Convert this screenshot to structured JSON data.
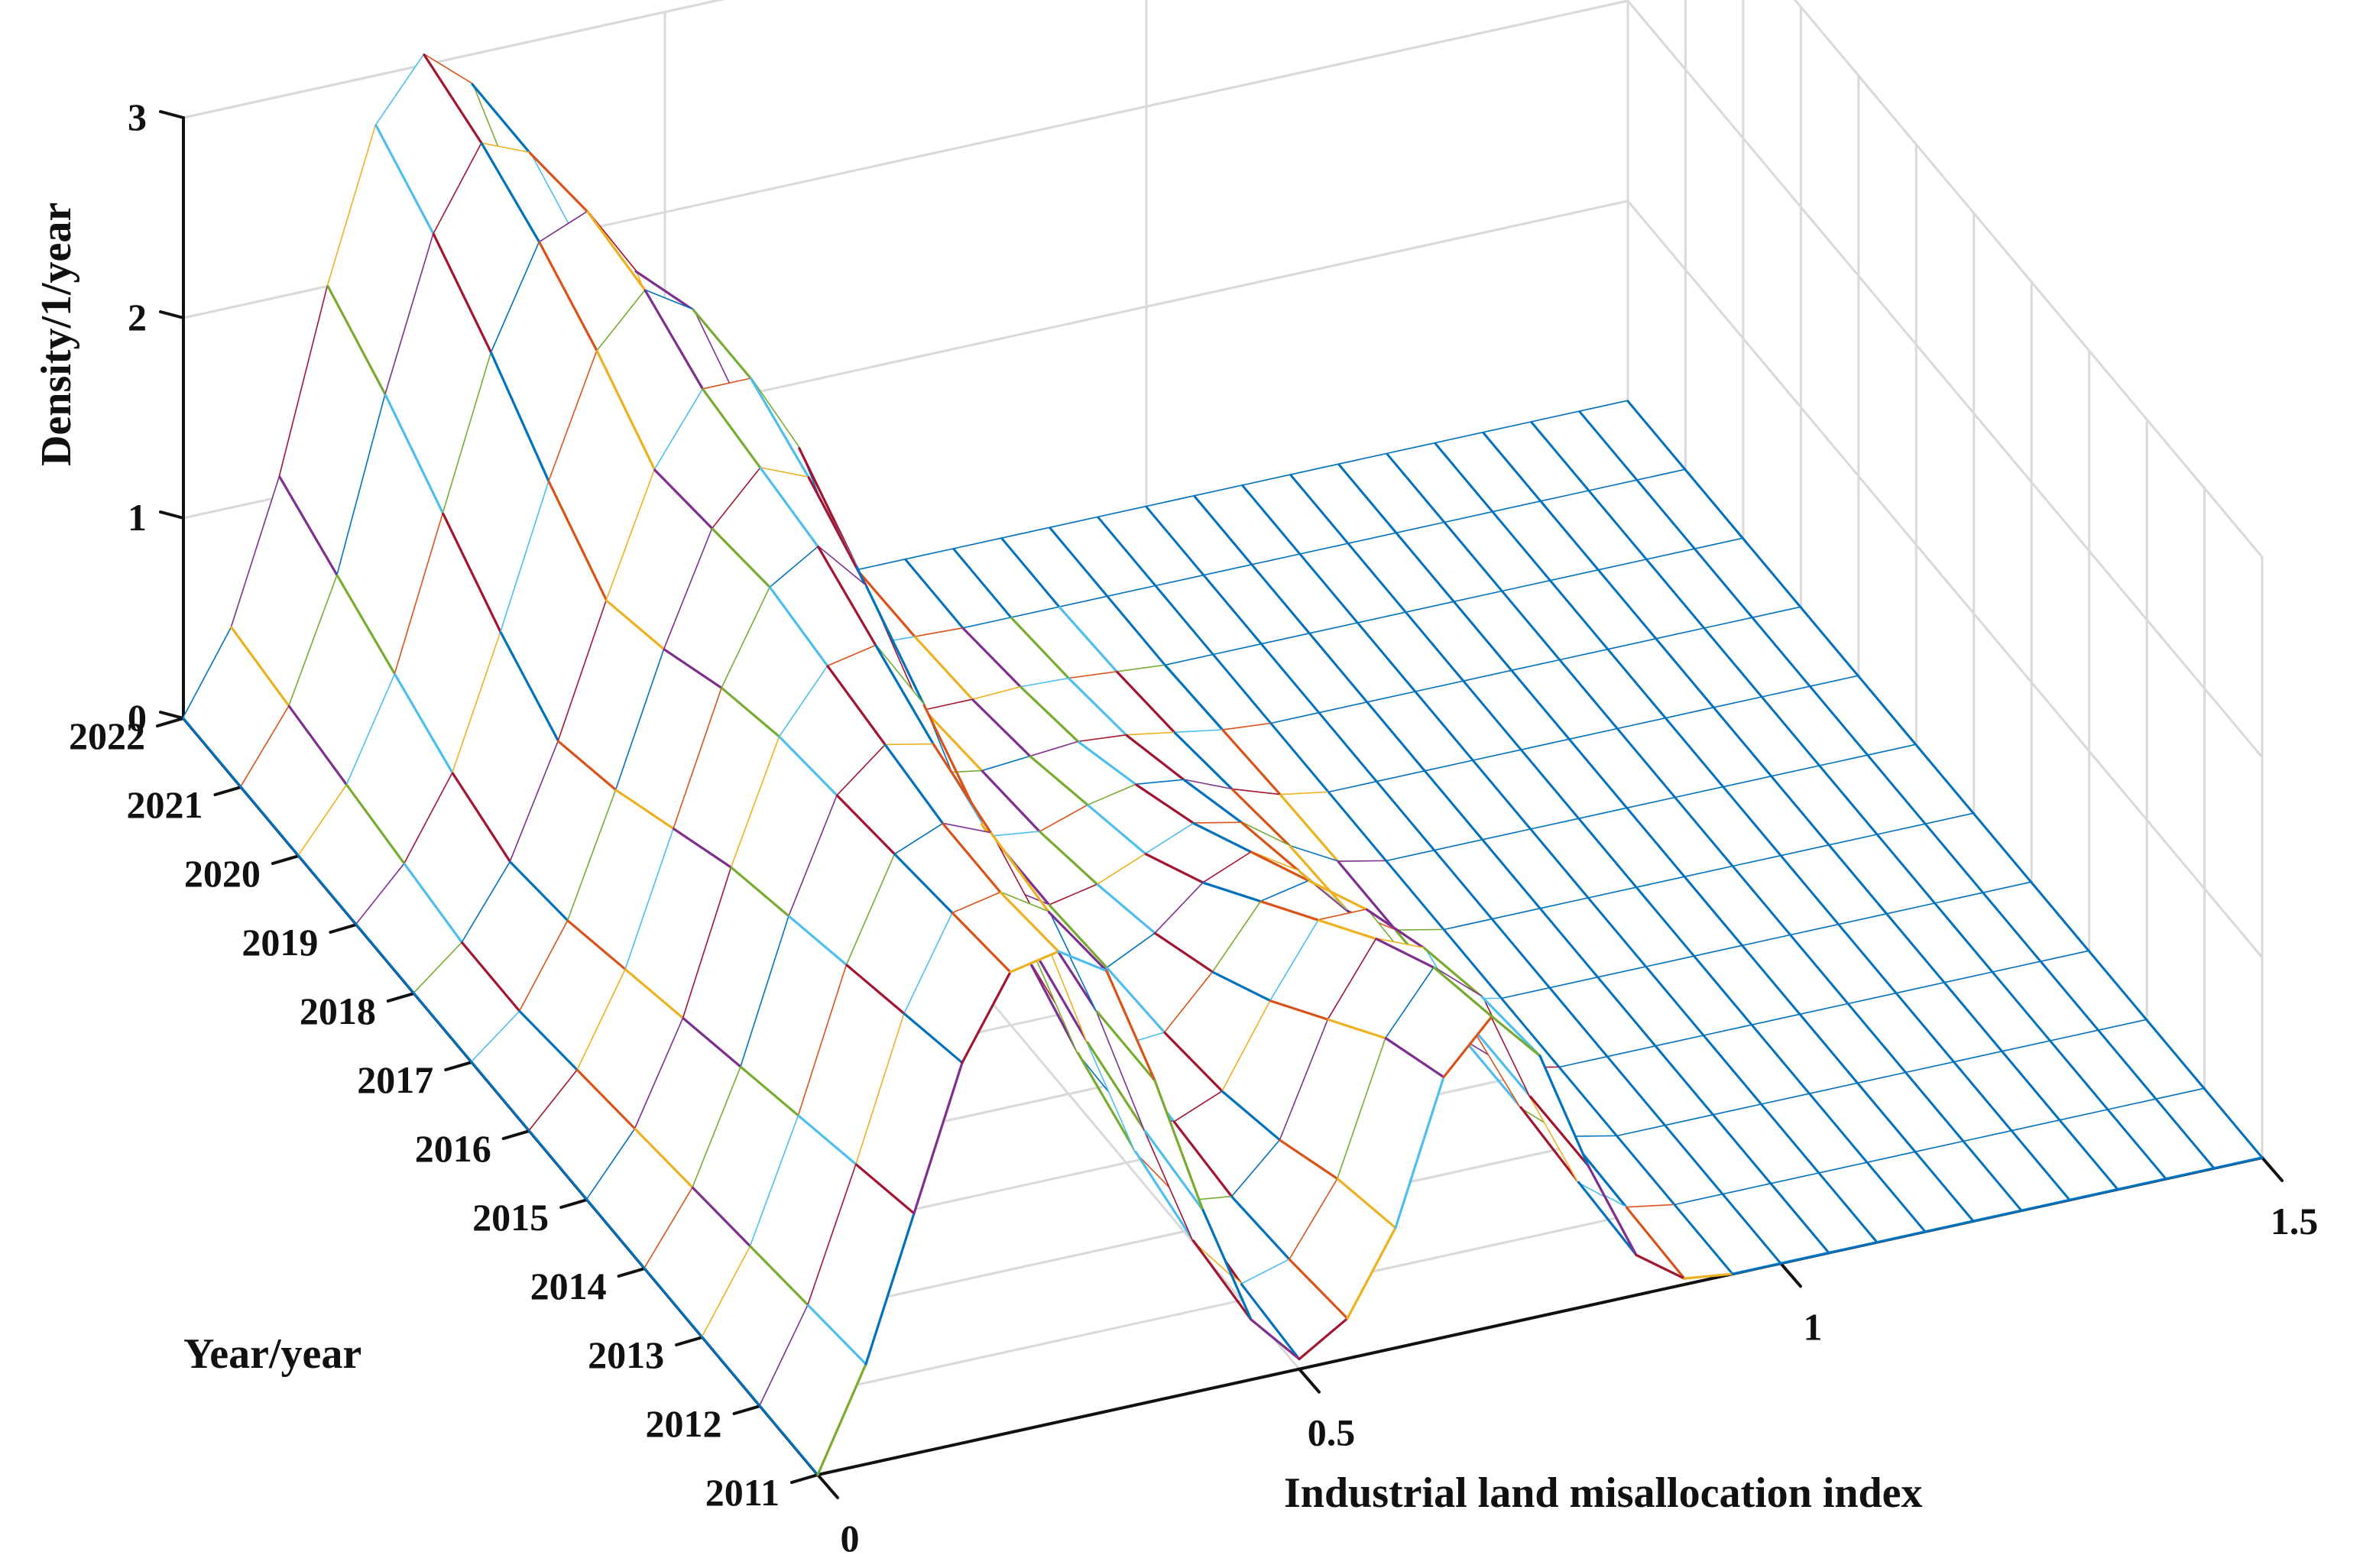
{
  "chart_data": {
    "type": "surface",
    "title": "",
    "xlabel": "Industrial land misallocation index",
    "ylabel": "Year/year",
    "zlabel": "Density/1/year",
    "x_ticks": [
      "0",
      "0.5",
      "1",
      "1.5"
    ],
    "y_ticks": [
      "2011",
      "2012",
      "2013",
      "2014",
      "2015",
      "2016",
      "2017",
      "2018",
      "2019",
      "2020",
      "2021",
      "2022"
    ],
    "z_ticks": [
      "0",
      "1",
      "2",
      "3"
    ],
    "xlim": [
      0,
      1.5
    ],
    "ylim": [
      2011,
      2022
    ],
    "zlim": [
      0,
      3
    ],
    "grid": true,
    "x": [
      0.0,
      0.05,
      0.1,
      0.15,
      0.2,
      0.25,
      0.3,
      0.35,
      0.4,
      0.45,
      0.5,
      0.55,
      0.6,
      0.65,
      0.7,
      0.75,
      0.8,
      0.85,
      0.9,
      0.95,
      1.0,
      1.05,
      1.1,
      1.15,
      1.2,
      1.25,
      1.3,
      1.35,
      1.4,
      1.45,
      1.5
    ],
    "series": [
      {
        "year": 2011,
        "values": [
          0.0,
          0.5,
          1.2,
          1.9,
          2.3,
          2.35,
          2.2,
          1.6,
          0.9,
          0.3,
          0.05,
          0.2,
          0.6,
          1.3,
          1.55,
          1.3,
          0.7,
          0.2,
          0.03,
          0.0,
          0.0,
          0.0,
          0.0,
          0.0,
          0.0,
          0.0,
          0.0,
          0.0,
          0.0,
          0.0,
          0.0
        ]
      },
      {
        "year": 2012,
        "values": [
          0.0,
          0.45,
          1.1,
          1.8,
          2.25,
          2.3,
          2.15,
          1.6,
          0.95,
          0.35,
          0.08,
          0.15,
          0.5,
          1.15,
          1.45,
          1.25,
          0.7,
          0.22,
          0.04,
          0.0,
          0.0,
          0.0,
          0.0,
          0.0,
          0.0,
          0.0,
          0.0,
          0.0,
          0.0,
          0.0,
          0.0
        ]
      },
      {
        "year": 2013,
        "values": [
          0.0,
          0.4,
          1.0,
          1.7,
          2.2,
          2.3,
          2.2,
          1.7,
          1.05,
          0.45,
          0.15,
          0.12,
          0.35,
          0.9,
          1.25,
          1.15,
          0.7,
          0.25,
          0.05,
          0.0,
          0.0,
          0.0,
          0.0,
          0.0,
          0.0,
          0.0,
          0.0,
          0.0,
          0.0,
          0.0,
          0.0
        ]
      },
      {
        "year": 2014,
        "values": [
          0.0,
          0.35,
          0.9,
          1.6,
          2.15,
          2.35,
          2.3,
          1.85,
          1.2,
          0.6,
          0.25,
          0.15,
          0.25,
          0.65,
          1.0,
          1.0,
          0.65,
          0.25,
          0.05,
          0.0,
          0.0,
          0.0,
          0.0,
          0.0,
          0.0,
          0.0,
          0.0,
          0.0,
          0.0,
          0.0,
          0.0
        ]
      },
      {
        "year": 2015,
        "values": [
          0.0,
          0.3,
          0.8,
          1.5,
          2.1,
          2.4,
          2.45,
          2.1,
          1.45,
          0.8,
          0.35,
          0.18,
          0.2,
          0.45,
          0.75,
          0.8,
          0.55,
          0.22,
          0.05,
          0.0,
          0.0,
          0.0,
          0.0,
          0.0,
          0.0,
          0.0,
          0.0,
          0.0,
          0.0,
          0.0,
          0.0
        ]
      },
      {
        "year": 2016,
        "values": [
          0.0,
          0.25,
          0.7,
          1.35,
          2.0,
          2.45,
          2.6,
          2.35,
          1.75,
          1.05,
          0.5,
          0.22,
          0.18,
          0.3,
          0.5,
          0.6,
          0.45,
          0.2,
          0.05,
          0.0,
          0.0,
          0.0,
          0.0,
          0.0,
          0.0,
          0.0,
          0.0,
          0.0,
          0.0,
          0.0,
          0.0
        ]
      },
      {
        "year": 2017,
        "values": [
          0.0,
          0.2,
          0.6,
          1.2,
          1.85,
          2.4,
          2.65,
          2.55,
          2.05,
          1.35,
          0.7,
          0.3,
          0.15,
          0.2,
          0.3,
          0.4,
          0.35,
          0.18,
          0.05,
          0.0,
          0.0,
          0.0,
          0.0,
          0.0,
          0.0,
          0.0,
          0.0,
          0.0,
          0.0,
          0.0,
          0.0
        ]
      },
      {
        "year": 2018,
        "values": [
          0.0,
          0.2,
          0.55,
          1.1,
          1.75,
          2.35,
          2.7,
          2.7,
          2.3,
          1.65,
          0.95,
          0.42,
          0.15,
          0.12,
          0.2,
          0.25,
          0.22,
          0.12,
          0.04,
          0.0,
          0.0,
          0.0,
          0.0,
          0.0,
          0.0,
          0.0,
          0.0,
          0.0,
          0.0,
          0.0,
          0.0
        ]
      },
      {
        "year": 2019,
        "values": [
          0.0,
          0.25,
          0.65,
          1.3,
          2.0,
          2.6,
          2.85,
          2.7,
          2.15,
          1.45,
          0.8,
          0.35,
          0.12,
          0.08,
          0.1,
          0.12,
          0.1,
          0.06,
          0.02,
          0.0,
          0.0,
          0.0,
          0.0,
          0.0,
          0.0,
          0.0,
          0.0,
          0.0,
          0.0,
          0.0,
          0.0
        ]
      },
      {
        "year": 2020,
        "values": [
          0.0,
          0.3,
          0.8,
          1.55,
          2.3,
          2.8,
          2.9,
          2.55,
          1.9,
          1.2,
          0.6,
          0.25,
          0.08,
          0.04,
          0.04,
          0.05,
          0.04,
          0.02,
          0.0,
          0.0,
          0.0,
          0.0,
          0.0,
          0.0,
          0.0,
          0.0,
          0.0,
          0.0,
          0.0,
          0.0,
          0.0
        ]
      },
      {
        "year": 2021,
        "values": [
          0.0,
          0.35,
          0.95,
          1.8,
          2.55,
          2.95,
          2.85,
          2.35,
          1.65,
          0.95,
          0.45,
          0.17,
          0.05,
          0.02,
          0.01,
          0.0,
          0.0,
          0.0,
          0.0,
          0.0,
          0.0,
          0.0,
          0.0,
          0.0,
          0.0,
          0.0,
          0.0,
          0.0,
          0.0,
          0.0,
          0.0
        ]
      },
      {
        "year": 2022,
        "values": [
          0.0,
          0.4,
          1.1,
          2.0,
          2.75,
          3.05,
          2.85,
          2.2,
          1.45,
          0.8,
          0.35,
          0.12,
          0.03,
          0.0,
          0.0,
          0.0,
          0.0,
          0.0,
          0.0,
          0.0,
          0.0,
          0.0,
          0.0,
          0.0,
          0.0,
          0.0,
          0.0,
          0.0,
          0.0,
          0.0,
          0.0
        ]
      }
    ],
    "colors": {
      "grid": "#d9d9d9",
      "axis": "#111111",
      "floor_mesh": "#0072bd",
      "surface_lines": [
        "#0072bd",
        "#d95319",
        "#edb120",
        "#7e2f8e",
        "#77ac30",
        "#4dbeee",
        "#a2142f"
      ]
    }
  }
}
